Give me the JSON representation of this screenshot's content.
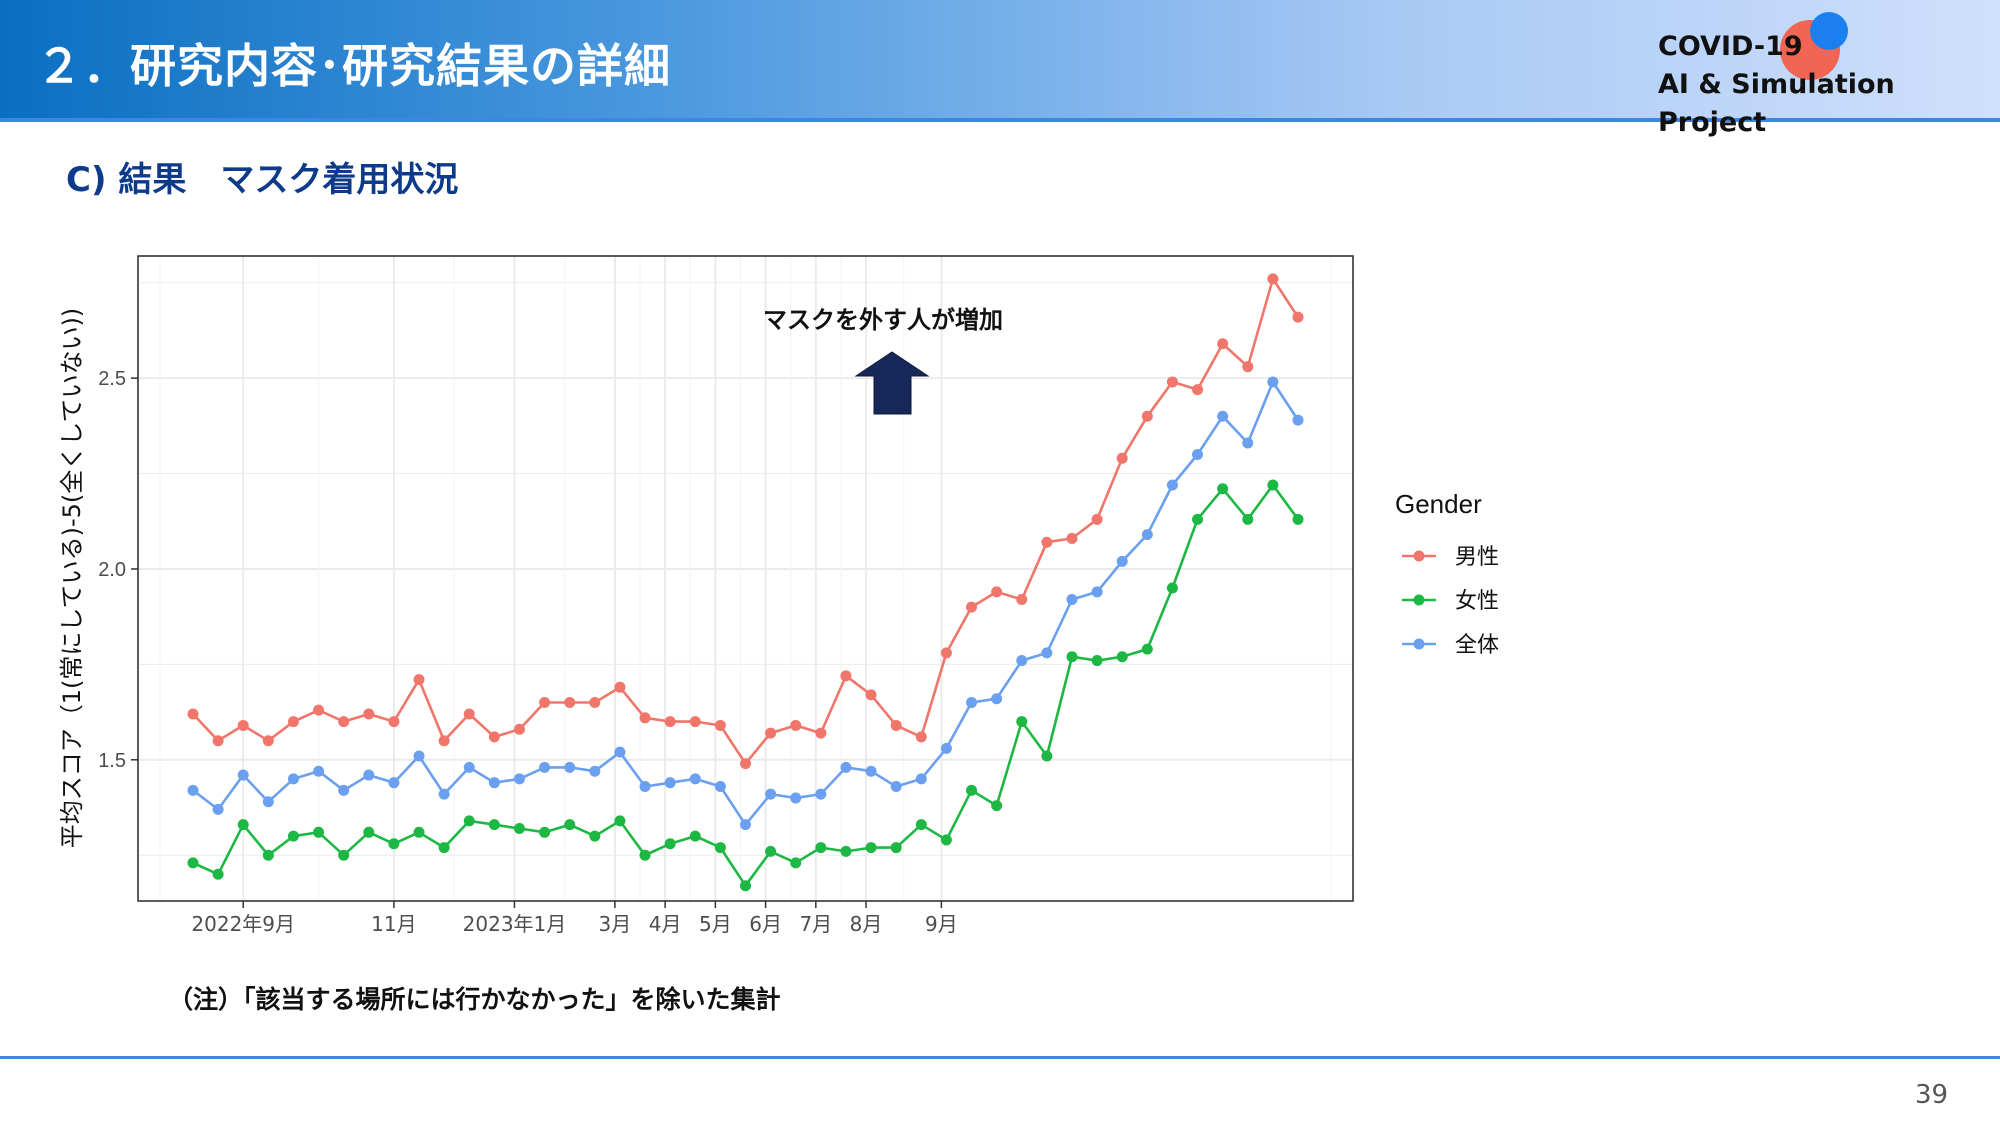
{
  "header": {
    "title": "２．研究内容･研究結果の詳細",
    "logo_line1": "COVID-19",
    "logo_line2": "AI & Simulation Project"
  },
  "section": {
    "heading": "C) 結果　マスク着用状況"
  },
  "note": "（注）「該当する場所には行かなかった」を除いた集計",
  "page_number": "39",
  "chart_data": {
    "type": "line",
    "ylabel": "平均スコア（1(常にしている)-5(全くしていない))",
    "xlabel": "",
    "ylim": [
      1.13,
      2.82
    ],
    "yticks": [
      1.5,
      2.0,
      2.5
    ],
    "ytick_labels": [
      "1.5",
      "2.0",
      "2.5"
    ],
    "xtick_labels": [
      {
        "label": "2022年9月",
        "index": 2
      },
      {
        "label": "11月",
        "index": 8
      },
      {
        "label": "2023年1月",
        "index": 12.8
      },
      {
        "label": "3月",
        "index": 16.8
      },
      {
        "label": "4月",
        "index": 18.8
      },
      {
        "label": "5月",
        "index": 20.8
      },
      {
        "label": "6月",
        "index": 22.8
      },
      {
        "label": "7月",
        "index": 24.8
      },
      {
        "label": "8月",
        "index": 26.8
      },
      {
        "label": "9月",
        "index": 29.8
      }
    ],
    "annotation": "マスクを外す人が増加",
    "legend": {
      "title": "Gender",
      "position": "right"
    },
    "grid": true,
    "series": [
      {
        "name": "男性",
        "color": "#f0766b",
        "values": [
          1.62,
          1.55,
          1.59,
          1.55,
          1.6,
          1.63,
          1.6,
          1.62,
          1.6,
          1.71,
          1.55,
          1.62,
          1.56,
          1.58,
          1.65,
          1.65,
          1.65,
          1.69,
          1.61,
          1.6,
          1.6,
          1.59,
          1.49,
          1.57,
          1.59,
          1.57,
          1.72,
          1.67,
          1.59,
          1.56,
          1.78,
          1.9,
          1.94,
          1.92,
          2.07,
          2.08,
          2.13,
          2.29,
          2.4,
          2.49,
          2.47,
          2.59,
          2.53,
          2.76,
          2.66
        ]
      },
      {
        "name": "女性",
        "color": "#1db843",
        "values": [
          1.23,
          1.2,
          1.33,
          1.25,
          1.3,
          1.31,
          1.25,
          1.31,
          1.28,
          1.31,
          1.27,
          1.34,
          1.33,
          1.32,
          1.31,
          1.33,
          1.3,
          1.34,
          1.25,
          1.28,
          1.3,
          1.27,
          1.17,
          1.26,
          1.23,
          1.27,
          1.26,
          1.27,
          1.27,
          1.33,
          1.29,
          1.42,
          1.38,
          1.6,
          1.51,
          1.77,
          1.76,
          1.77,
          1.79,
          1.95,
          2.13,
          2.21,
          2.13,
          2.22,
          2.13
        ]
      },
      {
        "name": "全体",
        "color": "#6b9ff0",
        "values": [
          1.42,
          1.37,
          1.46,
          1.39,
          1.45,
          1.47,
          1.42,
          1.46,
          1.44,
          1.51,
          1.41,
          1.48,
          1.44,
          1.45,
          1.48,
          1.48,
          1.47,
          1.52,
          1.43,
          1.44,
          1.45,
          1.43,
          1.33,
          1.41,
          1.4,
          1.41,
          1.48,
          1.47,
          1.43,
          1.45,
          1.53,
          1.65,
          1.66,
          1.76,
          1.78,
          1.92,
          1.94,
          2.02,
          2.09,
          2.22,
          2.3,
          2.4,
          2.33,
          2.49,
          2.39
        ]
      }
    ]
  }
}
